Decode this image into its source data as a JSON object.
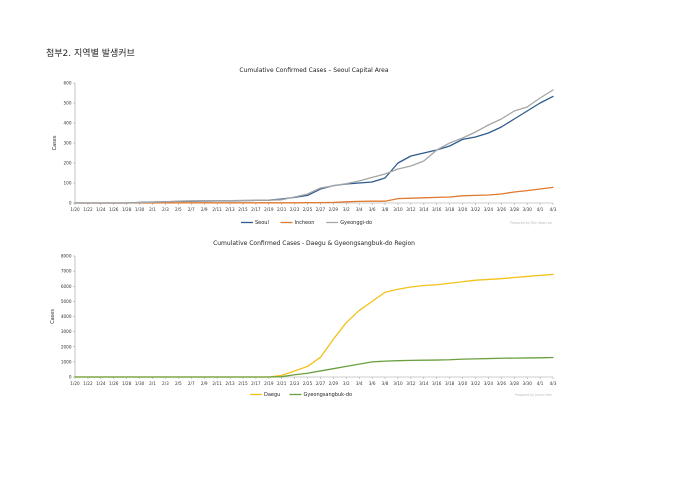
{
  "page": {
    "heading": "첨부2. 지역별 발생커브"
  },
  "colors": {
    "Seoul": "#2e5b8f",
    "Incheon": "#e07a2e",
    "Gyeonggi-do": "#a6a6a6",
    "Daegu": "#f2c21b",
    "Gyeongsangbuk-do": "#6aa040",
    "axis": "#9a9a9a"
  },
  "chart_data": [
    {
      "type": "line",
      "title": "Cumulative Confirmed Cases – Seoul Capital Area",
      "xlabel": "",
      "ylabel": "Cases",
      "ylim": [
        0,
        600
      ],
      "yticks": [
        0,
        100,
        200,
        300,
        400,
        500,
        600
      ],
      "grid": false,
      "legend": "bottom",
      "credit": "Prepared by Shin Woo Lee",
      "x": [
        "1/20",
        "1/22",
        "1/24",
        "1/26",
        "1/28",
        "1/30",
        "2/1",
        "2/3",
        "2/5",
        "2/7",
        "2/9",
        "2/11",
        "2/13",
        "2/15",
        "2/17",
        "2/19",
        "2/21",
        "2/23",
        "2/25",
        "2/27",
        "2/29",
        "3/2",
        "3/4",
        "3/6",
        "3/8",
        "3/10",
        "3/12",
        "3/14",
        "3/16",
        "3/18",
        "3/20",
        "3/22",
        "3/24",
        "3/26",
        "3/28",
        "3/30",
        "4/1",
        "4/3"
      ],
      "xtick_labels": [
        "1/20",
        "1/22",
        "1/24",
        "1/26",
        "1/28",
        "1/30",
        "2/1",
        "2/3",
        "2/5",
        "2/7",
        "2/9",
        "2/11",
        "2/13",
        "2/15",
        "2/17",
        "2/19",
        "2/21",
        "2/23",
        "2/25",
        "2/27",
        "2/29",
        "3/2",
        "3/4",
        "3/6",
        "3/8",
        "3/10",
        "3/12",
        "3/14",
        "3/16",
        "3/18",
        "3/20",
        "3/22",
        "3/24",
        "3/26",
        "3/28",
        "3/30",
        "4/1",
        "4/3"
      ],
      "series": [
        {
          "name": "Seoul",
          "values": [
            0,
            0,
            0,
            0,
            0,
            3,
            5,
            6,
            8,
            9,
            10,
            11,
            11,
            12,
            13,
            14,
            20,
            28,
            38,
            70,
            87,
            95,
            100,
            105,
            125,
            200,
            235,
            250,
            265,
            285,
            318,
            330,
            350,
            380,
            420,
            460,
            500,
            533
          ]
        },
        {
          "name": "Incheon",
          "values": [
            0,
            0,
            0,
            0,
            0,
            0,
            0,
            1,
            1,
            1,
            1,
            1,
            1,
            1,
            1,
            1,
            1,
            1,
            2,
            2,
            3,
            6,
            8,
            9,
            9,
            22,
            24,
            26,
            28,
            30,
            36,
            38,
            40,
            45,
            55,
            62,
            70,
            78
          ]
        },
        {
          "name": "Gyeonggi-do",
          "values": [
            0,
            0,
            0,
            0,
            0,
            2,
            4,
            6,
            9,
            11,
            12,
            12,
            12,
            13,
            13,
            14,
            16,
            30,
            45,
            75,
            86,
            97,
            110,
            128,
            145,
            170,
            185,
            210,
            265,
            300,
            325,
            355,
            390,
            420,
            460,
            480,
            525,
            565
          ]
        }
      ]
    },
    {
      "type": "line",
      "title": "Cumulative Confirmed Cases - Daegu & Gyeongsangbuk-do Region",
      "xlabel": "",
      "ylabel": "Cases",
      "ylim": [
        0,
        8000
      ],
      "yticks": [
        0,
        1000,
        2000,
        3000,
        4000,
        5000,
        6000,
        7000,
        8000
      ],
      "grid": false,
      "legend": "bottom",
      "credit": "Prepared by Jinsun Han",
      "x": [
        "1/20",
        "1/22",
        "1/24",
        "1/26",
        "1/28",
        "1/30",
        "2/1",
        "2/3",
        "2/5",
        "2/7",
        "2/9",
        "2/11",
        "2/13",
        "2/15",
        "2/17",
        "2/19",
        "2/21",
        "2/23",
        "2/25",
        "2/27",
        "2/29",
        "3/2",
        "3/4",
        "3/6",
        "3/8",
        "3/10",
        "3/12",
        "3/14",
        "3/16",
        "3/18",
        "3/20",
        "3/22",
        "3/24",
        "3/26",
        "3/28",
        "3/30",
        "4/1",
        "4/3"
      ],
      "xtick_labels": [
        "1/20",
        "1/22",
        "1/24",
        "1/26",
        "1/28",
        "1/30",
        "2/1",
        "2/3",
        "2/5",
        "2/7",
        "2/9",
        "2/11",
        "2/13",
        "2/15",
        "2/17",
        "2/19",
        "2/21",
        "2/23",
        "2/25",
        "2/27",
        "2/29",
        "3/2",
        "3/4",
        "3/6",
        "3/8",
        "3/10",
        "3/12",
        "3/14",
        "3/16",
        "3/18",
        "3/20",
        "3/22",
        "3/24",
        "3/26",
        "3/28",
        "3/30",
        "4/1",
        "4/3"
      ],
      "series": [
        {
          "name": "Daegu",
          "values": [
            0,
            0,
            0,
            0,
            0,
            0,
            0,
            0,
            0,
            0,
            0,
            0,
            0,
            0,
            0,
            0,
            110,
            400,
            700,
            1300,
            2500,
            3600,
            4400,
            5000,
            5600,
            5800,
            5950,
            6050,
            6100,
            6200,
            6300,
            6400,
            6450,
            6500,
            6580,
            6650,
            6720,
            6780
          ]
        },
        {
          "name": "Gyeongsangbuk-do",
          "values": [
            0,
            0,
            0,
            0,
            0,
            0,
            0,
            0,
            0,
            0,
            0,
            0,
            0,
            0,
            0,
            0,
            20,
            150,
            250,
            400,
            550,
            700,
            850,
            1000,
            1050,
            1080,
            1100,
            1110,
            1120,
            1140,
            1180,
            1200,
            1220,
            1240,
            1250,
            1260,
            1270,
            1290
          ]
        }
      ]
    }
  ]
}
